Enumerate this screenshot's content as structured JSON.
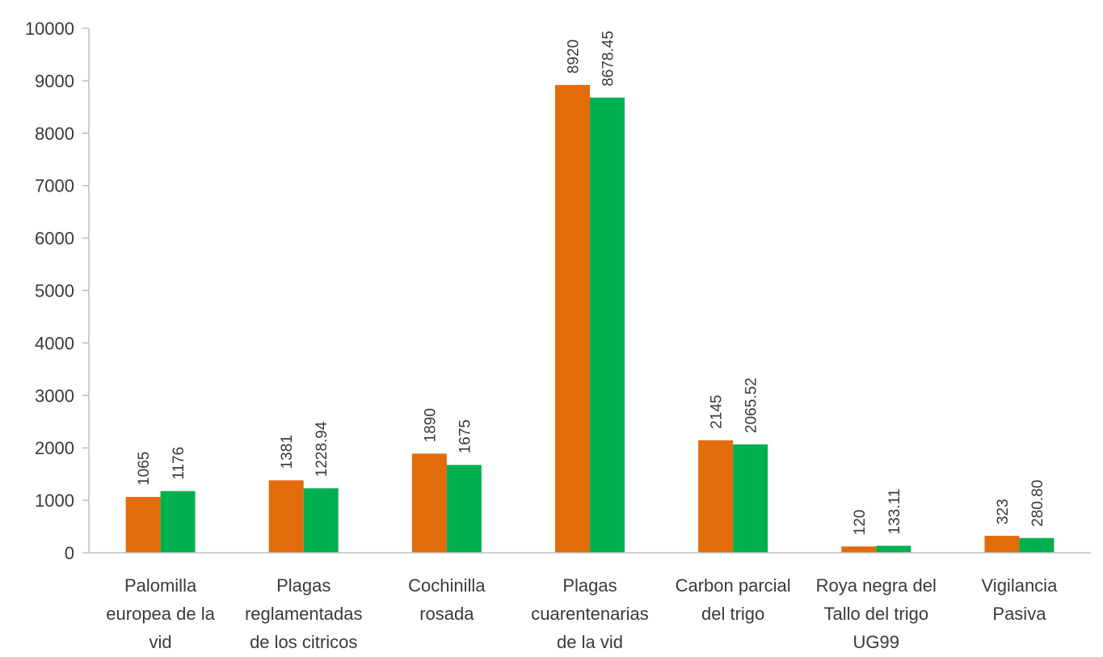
{
  "chart_data": {
    "type": "bar",
    "categories": [
      [
        "Palomilla",
        "europea de la",
        "vid"
      ],
      [
        "Plagas",
        "reglamentadas",
        "de los citricos"
      ],
      [
        "Cochinilla",
        "rosada"
      ],
      [
        "Plagas",
        "cuarentenarias",
        "de la vid"
      ],
      [
        "Carbon parcial",
        "del trigo"
      ],
      [
        "Roya negra del",
        "Tallo del trigo",
        "UG99"
      ],
      [
        "Vigilancia",
        "Pasiva"
      ]
    ],
    "series": [
      {
        "color": "#E36C0A",
        "values": [
          1065,
          1381,
          1890,
          8920,
          2145,
          120,
          323
        ],
        "labels": [
          "1065",
          "1381",
          "1890",
          "8920",
          "2145",
          "120",
          "323"
        ]
      },
      {
        "color": "#00B050",
        "values": [
          1176,
          1228.94,
          1675,
          8678.45,
          2065.52,
          133.11,
          280.8
        ],
        "labels": [
          "1176",
          "1228.94",
          "1675",
          "8678.45",
          "2065.52",
          "133.11",
          "280.80"
        ]
      }
    ],
    "yticks": [
      "0",
      "1000",
      "2000",
      "3000",
      "4000",
      "5000",
      "6000",
      "7000",
      "8000",
      "9000",
      "10000"
    ],
    "ylim": [
      0,
      10000
    ],
    "grid": false,
    "legend": "none"
  }
}
